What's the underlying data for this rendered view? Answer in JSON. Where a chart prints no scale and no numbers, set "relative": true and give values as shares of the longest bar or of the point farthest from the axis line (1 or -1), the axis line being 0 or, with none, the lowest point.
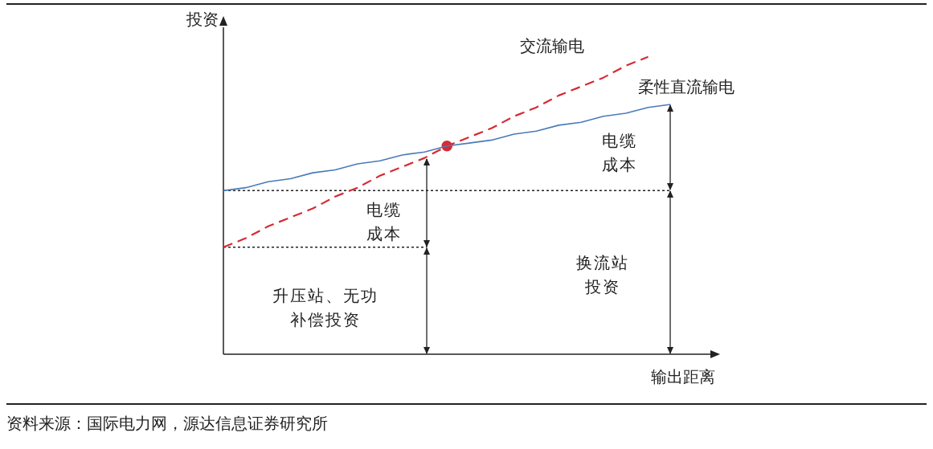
{
  "chart_data": {
    "type": "line",
    "relative": true,
    "xlabel": "输出距离",
    "ylabel": "投资",
    "legend": false,
    "marker": "none",
    "categories": [
      null,
      null,
      null,
      null,
      null,
      null,
      null,
      null,
      null,
      null,
      null,
      null,
      null,
      null,
      null,
      null,
      null,
      null,
      null,
      null,
      null,
      null,
      null
    ],
    "series": [
      {
        "name": "柔性直流输电",
        "color": "#4a7ab8",
        "line_style": "solid",
        "values": [
          0.55,
          0.56,
          0.58,
          0.59,
          0.61,
          0.62,
          0.64,
          0.65,
          0.67,
          0.68,
          0.7,
          0.71,
          0.72,
          0.74,
          0.75,
          0.77,
          0.78,
          0.8,
          0.81,
          0.83,
          0.84,
          null,
          null
        ]
      },
      {
        "name": "交流输电",
        "color": "#d62b35",
        "line_style": "dashed",
        "values": [
          0.36,
          0.39,
          0.43,
          0.46,
          0.49,
          0.53,
          0.56,
          0.6,
          0.63,
          0.66,
          0.7,
          0.73,
          0.76,
          0.8,
          0.83,
          0.87,
          0.9,
          0.93,
          0.97,
          1.0,
          null,
          null,
          null
        ]
      },
      {
        "color": "#d62b35",
        "marker": "circle",
        "values": [
          null,
          null,
          null,
          null,
          null,
          null,
          null,
          null,
          null,
          null,
          0.7,
          null,
          null,
          null,
          null,
          null,
          null,
          null,
          null,
          null,
          null,
          null,
          null
        ]
      }
    ],
    "ref_lines": [
      {
        "axis": "y",
        "value": 0.55,
        "color": "#222222",
        "line_style": "dotted"
      },
      {
        "axis": "y",
        "value": 0.36,
        "color": "#222222",
        "line_style": "dotted"
      }
    ],
    "annotations": [
      "电缆成本",
      "电缆成本",
      "换流站投资",
      "升压站、无功补偿投资",
      "资料来源：国际电力网，源达信息证券研究所"
    ]
  }
}
